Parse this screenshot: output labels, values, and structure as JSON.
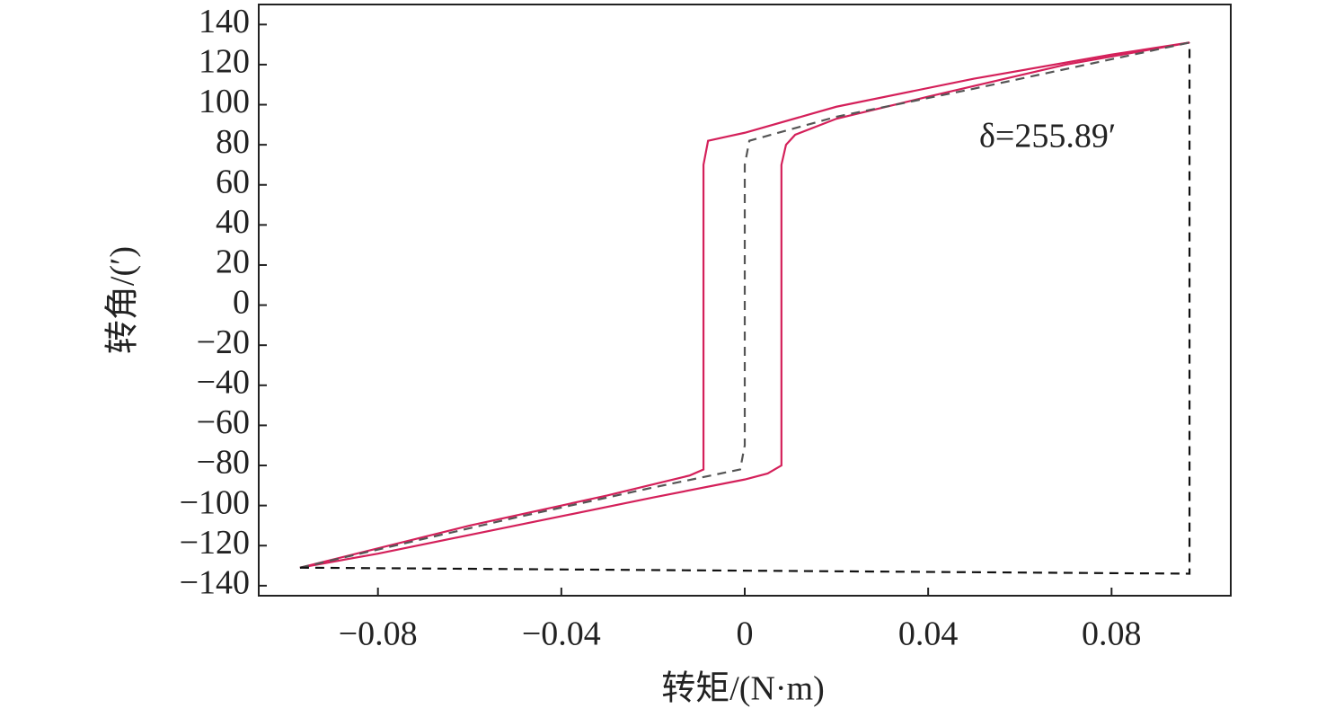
{
  "chart_data": {
    "type": "line",
    "x_label": "转矩/(N·m)",
    "y_label": "转角/(′)",
    "annotation": "δ=255.89′",
    "xlim": [
      -0.106,
      0.106
    ],
    "ylim": [
      -145,
      150
    ],
    "xticks": [
      {
        "value": -0.08,
        "label": "−0.08"
      },
      {
        "value": -0.04,
        "label": "−0.04"
      },
      0,
      0.04,
      0.08
    ],
    "yticks": [
      {
        "value": -140,
        "label": "−140"
      },
      {
        "value": -120,
        "label": "−120"
      },
      {
        "value": -100,
        "label": "−100"
      },
      {
        "value": -80,
        "label": "−80"
      },
      {
        "value": -60,
        "label": "−60"
      },
      {
        "value": -40,
        "label": "−40"
      },
      {
        "value": -20,
        "label": "−20"
      },
      0,
      20,
      40,
      60,
      80,
      100,
      120,
      140
    ],
    "grid": false,
    "series": [
      {
        "color": "#d4205a",
        "dashed": false,
        "x": [
          -0.097,
          -0.06,
          -0.03,
          -0.012,
          -0.009,
          -0.009,
          -0.009,
          -0.009,
          -0.008,
          -0.004,
          0,
          0.02,
          0.05,
          0.08,
          0.097
        ],
        "values": [
          -131,
          -110,
          -95,
          -85,
          -82,
          -70,
          0,
          70,
          82,
          84,
          86,
          99,
          113,
          125,
          131
        ]
      },
      {
        "color": "#d4205a",
        "dashed": false,
        "x": [
          0.097,
          0.07,
          0.04,
          0.02,
          0.011,
          0.009,
          0.008,
          0.008,
          0.008,
          0.008,
          0.005,
          0,
          -0.02,
          -0.05,
          -0.08,
          -0.097
        ],
        "values": [
          131,
          120,
          104,
          93,
          85,
          80,
          70,
          0,
          -70,
          -80,
          -84,
          -87,
          -96,
          -110,
          -124,
          -131
        ]
      },
      {
        "color": "#555555",
        "dashed": true,
        "x": [
          -0.097,
          -0.05,
          -0.02,
          -0.001,
          0,
          0,
          0.001,
          0.02,
          0.05,
          0.097
        ],
        "values": [
          -131,
          -106,
          -91,
          -82,
          -70,
          70,
          82,
          94,
          108,
          131
        ]
      },
      {
        "color": "#111111",
        "dashed": true,
        "x": [
          -0.097,
          0.097,
          0.097
        ],
        "values": [
          -131,
          -134,
          131
        ]
      }
    ]
  }
}
